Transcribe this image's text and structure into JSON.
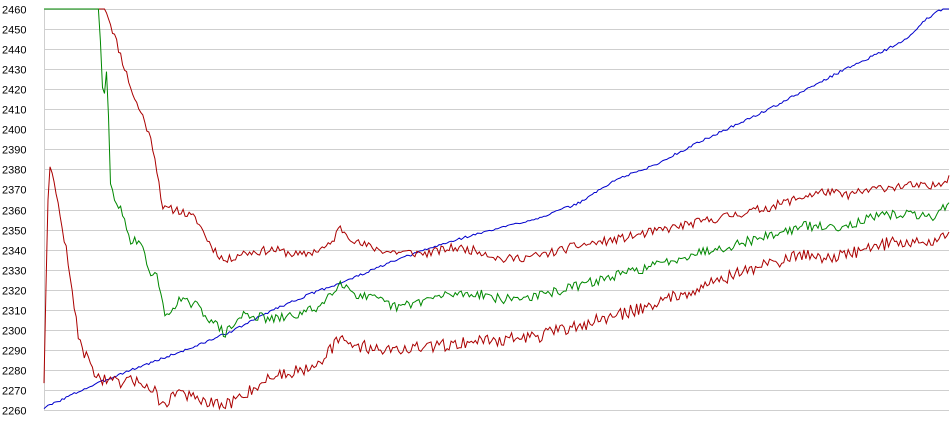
{
  "chart_data": {
    "type": "line",
    "title": "",
    "xlabel": "",
    "ylabel": "",
    "ylim": [
      2260,
      2460
    ],
    "yticks": [
      "2460",
      "2450",
      "2440",
      "2430",
      "2420",
      "2410",
      "2400",
      "2390",
      "2380",
      "2370",
      "2360",
      "2350",
      "2340",
      "2330",
      "2320",
      "2310",
      "2300",
      "2290",
      "2280",
      "2270",
      "2260"
    ],
    "grid": true,
    "legend": "none",
    "x_count": 450,
    "series": [
      {
        "color": "#0000cc",
        "anchors": [
          [
            0,
            2261
          ],
          [
            40,
            2270
          ],
          [
            80,
            2278
          ],
          [
            120,
            2285
          ],
          [
            160,
            2292
          ],
          [
            200,
            2300
          ],
          [
            240,
            2310
          ],
          [
            280,
            2318
          ],
          [
            320,
            2325
          ],
          [
            360,
            2333
          ],
          [
            400,
            2340
          ],
          [
            440,
            2346
          ],
          [
            480,
            2351
          ],
          [
            520,
            2356
          ],
          [
            560,
            2363
          ],
          [
            600,
            2375
          ],
          [
            640,
            2382
          ],
          [
            680,
            2392
          ],
          [
            720,
            2401
          ],
          [
            760,
            2410
          ],
          [
            800,
            2420
          ],
          [
            840,
            2430
          ],
          [
            880,
            2439
          ],
          [
            905,
            2445
          ],
          [
            925,
            2455
          ],
          [
            949,
            2462
          ]
        ],
        "noise": 0.6,
        "seed": 3
      },
      {
        "color": "#aa0000",
        "anchors": [
          [
            0,
            2460
          ],
          [
            65,
            2460
          ],
          [
            75,
            2445
          ],
          [
            85,
            2430
          ],
          [
            95,
            2415
          ],
          [
            105,
            2405
          ],
          [
            115,
            2390
          ],
          [
            125,
            2360
          ],
          [
            140,
            2360
          ],
          [
            160,
            2355
          ],
          [
            175,
            2342
          ],
          [
            190,
            2334
          ],
          [
            205,
            2338
          ],
          [
            240,
            2340
          ],
          [
            270,
            2337
          ],
          [
            300,
            2342
          ],
          [
            310,
            2351
          ],
          [
            330,
            2343
          ],
          [
            360,
            2339
          ],
          [
            400,
            2338
          ],
          [
            430,
            2341
          ],
          [
            460,
            2339
          ],
          [
            480,
            2335
          ],
          [
            520,
            2337
          ],
          [
            560,
            2342
          ],
          [
            600,
            2345
          ],
          [
            640,
            2349
          ],
          [
            680,
            2353
          ],
          [
            720,
            2357
          ],
          [
            760,
            2361
          ],
          [
            800,
            2367
          ],
          [
            820,
            2369
          ],
          [
            840,
            2367
          ],
          [
            880,
            2371
          ],
          [
            910,
            2372
          ],
          [
            930,
            2371
          ],
          [
            949,
            2376
          ]
        ],
        "noise": 2.2,
        "seed": 11
      },
      {
        "color": "#008800",
        "anchors": [
          [
            0,
            2460
          ],
          [
            58,
            2460
          ],
          [
            62,
            2410
          ],
          [
            66,
            2430
          ],
          [
            70,
            2370
          ],
          [
            80,
            2360
          ],
          [
            90,
            2345
          ],
          [
            100,
            2345
          ],
          [
            110,
            2330
          ],
          [
            120,
            2325
          ],
          [
            128,
            2305
          ],
          [
            140,
            2315
          ],
          [
            160,
            2312
          ],
          [
            175,
            2305
          ],
          [
            190,
            2298
          ],
          [
            210,
            2308
          ],
          [
            240,
            2305
          ],
          [
            270,
            2308
          ],
          [
            290,
            2312
          ],
          [
            310,
            2324
          ],
          [
            330,
            2317
          ],
          [
            350,
            2315
          ],
          [
            370,
            2311
          ],
          [
            400,
            2315
          ],
          [
            430,
            2318
          ],
          [
            460,
            2318
          ],
          [
            480,
            2315
          ],
          [
            520,
            2317
          ],
          [
            560,
            2322
          ],
          [
            600,
            2327
          ],
          [
            640,
            2332
          ],
          [
            680,
            2338
          ],
          [
            720,
            2342
          ],
          [
            760,
            2347
          ],
          [
            800,
            2352
          ],
          [
            820,
            2351
          ],
          [
            840,
            2352
          ],
          [
            870,
            2356
          ],
          [
            900,
            2358
          ],
          [
            930,
            2356
          ],
          [
            949,
            2363
          ]
        ],
        "noise": 2.4,
        "seed": 29
      },
      {
        "color": "#aa0000",
        "anchors": [
          [
            0,
            2275
          ],
          [
            5,
            2385
          ],
          [
            20,
            2350
          ],
          [
            35,
            2300
          ],
          [
            45,
            2285
          ],
          [
            60,
            2275
          ],
          [
            80,
            2273
          ],
          [
            100,
            2275
          ],
          [
            115,
            2270
          ],
          [
            125,
            2262
          ],
          [
            140,
            2270
          ],
          [
            160,
            2265
          ],
          [
            175,
            2263
          ],
          [
            190,
            2262
          ],
          [
            210,
            2268
          ],
          [
            240,
            2277
          ],
          [
            270,
            2280
          ],
          [
            290,
            2285
          ],
          [
            310,
            2295
          ],
          [
            330,
            2292
          ],
          [
            360,
            2290
          ],
          [
            400,
            2291
          ],
          [
            430,
            2293
          ],
          [
            460,
            2295
          ],
          [
            480,
            2295
          ],
          [
            520,
            2297
          ],
          [
            560,
            2302
          ],
          [
            600,
            2307
          ],
          [
            640,
            2313
          ],
          [
            680,
            2320
          ],
          [
            720,
            2327
          ],
          [
            760,
            2333
          ],
          [
            800,
            2338
          ],
          [
            820,
            2336
          ],
          [
            840,
            2337
          ],
          [
            870,
            2342
          ],
          [
            900,
            2344
          ],
          [
            930,
            2343
          ],
          [
            949,
            2349
          ]
        ],
        "noise": 3.2,
        "seed": 47
      }
    ]
  }
}
